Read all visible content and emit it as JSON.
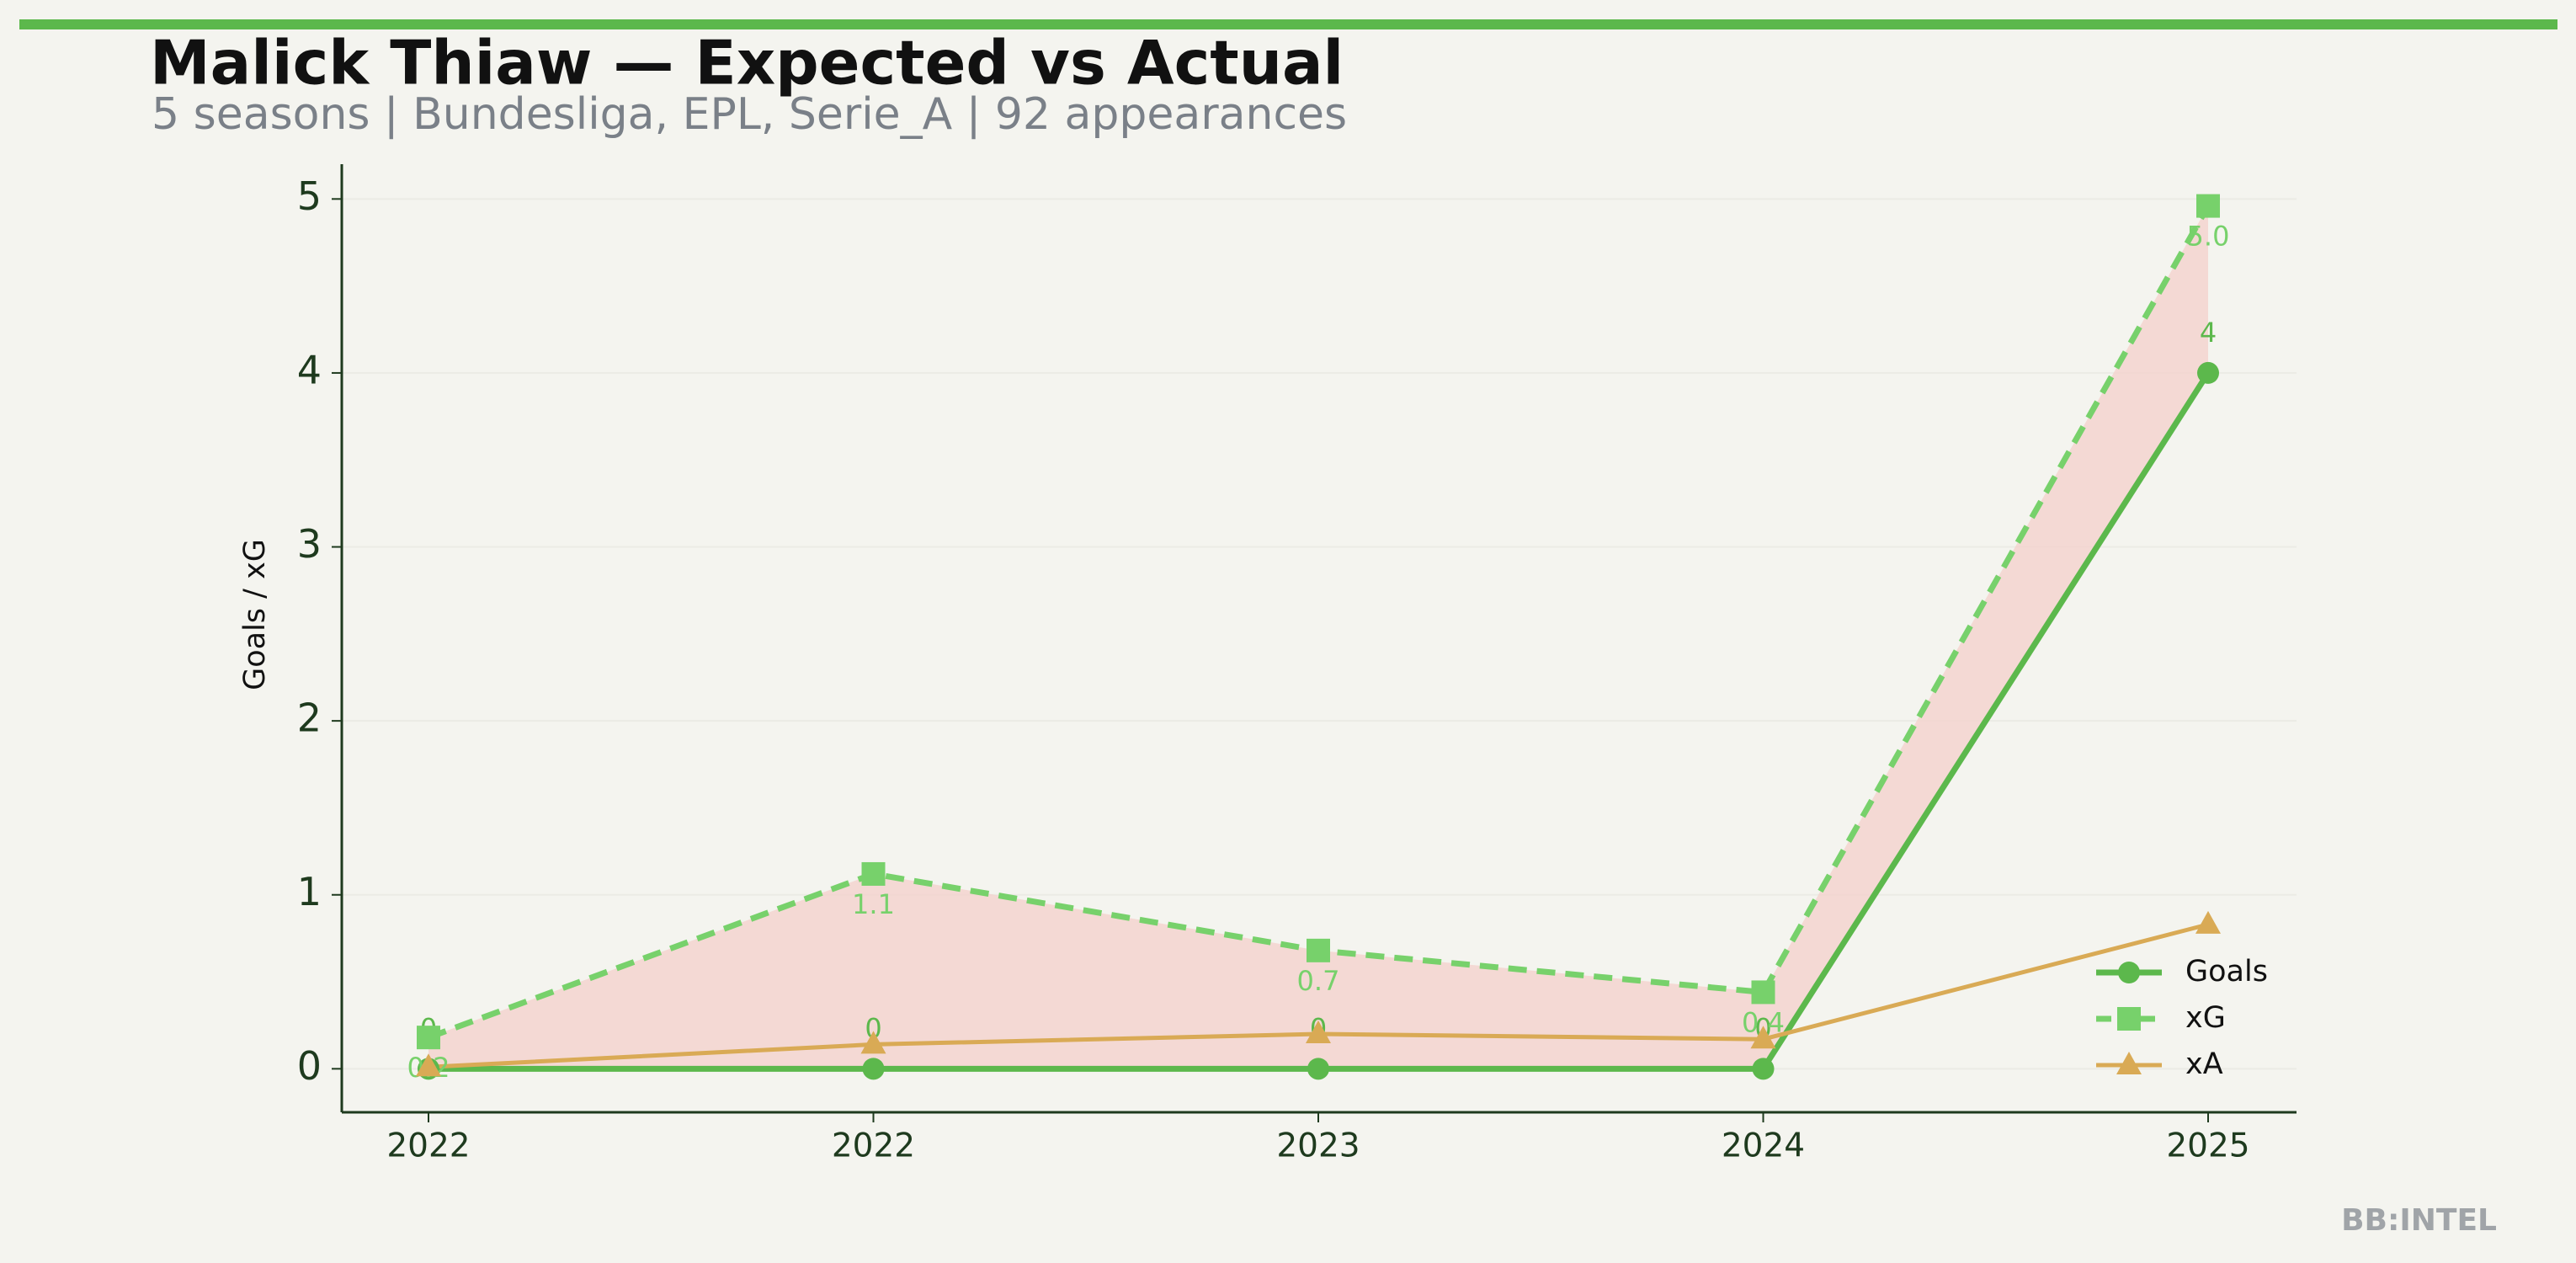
{
  "chart_data": {
    "type": "line",
    "title": "Malick Thiaw — Expected vs Actual",
    "subtitle": "5 seasons | Bundesliga, EPL, Serie_A | 92 appearances",
    "y_label": "Goals / xG",
    "categories": [
      "2022",
      "2022",
      "2023",
      "2024",
      "2025"
    ],
    "series": [
      {
        "name": "Goals",
        "color": "#5cb84c",
        "values": [
          0,
          0,
          0,
          0,
          4
        ]
      },
      {
        "name": "xG",
        "color": "#77d16b",
        "values": [
          0.18,
          1.12,
          0.68,
          0.44,
          4.96
        ],
        "value_labels": [
          "0.2",
          "1.1",
          "0.7",
          "0.4",
          "5.0"
        ]
      },
      {
        "name": "xA",
        "color": "#d9aa55",
        "values": [
          0.01,
          0.14,
          0.2,
          0.17,
          0.83
        ]
      }
    ],
    "fill_between_color": "#f4d0cb",
    "ylim": [
      -0.25,
      5.2
    ],
    "yticks": [
      0,
      1,
      2,
      3,
      4,
      5
    ],
    "grid": true,
    "legend": "lower right",
    "watermark": "BB:INTEL"
  }
}
